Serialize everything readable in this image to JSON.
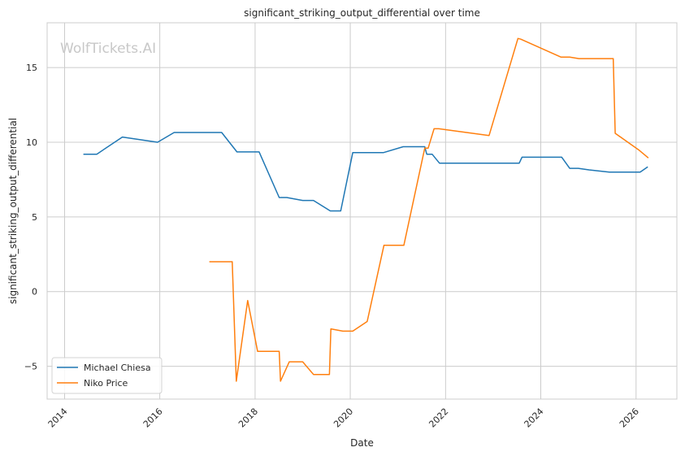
{
  "chart_data": {
    "type": "line",
    "title": "significant_striking_output_differential over time",
    "xlabel": "Date",
    "ylabel": "significant_striking_output_differential",
    "watermark": "WolfTickets.AI",
    "xlim": [
      "2013-08-20",
      "2026-11-10"
    ],
    "ylim": [
      -7.2,
      18.0
    ],
    "x_ticks": [
      "2014",
      "2016",
      "2018",
      "2020",
      "2022",
      "2024",
      "2026"
    ],
    "y_ticks": [
      -5,
      0,
      5,
      10,
      15
    ],
    "grid": true,
    "legend_position": "lower-left",
    "colors": {
      "Michael Chiesa": "#1f77b4",
      "Niko Price": "#ff7f0e"
    },
    "series": [
      {
        "name": "Michael Chiesa",
        "color": "#1f77b4",
        "points": [
          [
            "2014-05-25",
            9.2
          ],
          [
            "2014-09-05",
            9.2
          ],
          [
            "2015-03-20",
            10.35
          ],
          [
            "2015-12-15",
            10.0
          ],
          [
            "2016-04-20",
            10.65
          ],
          [
            "2017-01-20",
            10.65
          ],
          [
            "2017-04-20",
            10.65
          ],
          [
            "2017-08-15",
            9.35
          ],
          [
            "2018-02-01",
            9.35
          ],
          [
            "2018-07-05",
            6.3
          ],
          [
            "2018-09-01",
            6.3
          ],
          [
            "2019-01-01",
            6.1
          ],
          [
            "2019-03-25",
            6.1
          ],
          [
            "2019-08-01",
            5.4
          ],
          [
            "2019-10-20",
            5.4
          ],
          [
            "2020-01-20",
            9.3
          ],
          [
            "2020-09-10",
            9.3
          ],
          [
            "2021-02-10",
            9.7
          ],
          [
            "2021-07-25",
            9.7
          ],
          [
            "2021-08-10",
            9.2
          ],
          [
            "2021-09-20",
            9.2
          ],
          [
            "2021-11-15",
            8.6
          ],
          [
            "2023-07-20",
            8.6
          ],
          [
            "2023-08-10",
            9.0
          ],
          [
            "2024-06-10",
            9.0
          ],
          [
            "2024-08-10",
            8.25
          ],
          [
            "2024-10-15",
            8.25
          ],
          [
            "2025-01-05",
            8.15
          ],
          [
            "2025-06-10",
            8.0
          ],
          [
            "2026-02-01",
            8.0
          ],
          [
            "2026-04-01",
            8.35
          ]
        ]
      },
      {
        "name": "Niko Price",
        "color": "#ff7f0e",
        "points": [
          [
            "2017-01-15",
            2.0
          ],
          [
            "2017-07-10",
            2.0
          ],
          [
            "2017-08-10",
            -6.0
          ],
          [
            "2017-11-05",
            -0.6
          ],
          [
            "2018-01-20",
            -4.0
          ],
          [
            "2018-07-05",
            -4.0
          ],
          [
            "2018-07-15",
            -6.0
          ],
          [
            "2018-09-20",
            -4.7
          ],
          [
            "2019-01-01",
            -4.7
          ],
          [
            "2019-03-25",
            -5.55
          ],
          [
            "2019-07-25",
            -5.55
          ],
          [
            "2019-08-05",
            -2.5
          ],
          [
            "2019-11-05",
            -2.65
          ],
          [
            "2020-01-20",
            -2.65
          ],
          [
            "2020-05-10",
            -2.0
          ],
          [
            "2020-09-15",
            3.1
          ],
          [
            "2021-02-15",
            3.1
          ],
          [
            "2021-07-25",
            9.6
          ],
          [
            "2021-08-20",
            9.6
          ],
          [
            "2021-10-05",
            10.9
          ],
          [
            "2021-11-10",
            10.9
          ],
          [
            "2022-12-01",
            10.45
          ],
          [
            "2023-07-10",
            16.95
          ],
          [
            "2023-08-01",
            16.9
          ],
          [
            "2024-06-05",
            15.7
          ],
          [
            "2024-08-10",
            15.7
          ],
          [
            "2024-10-20",
            15.6
          ],
          [
            "2025-07-10",
            15.6
          ],
          [
            "2025-07-25",
            10.6
          ],
          [
            "2026-01-20",
            9.5
          ],
          [
            "2026-04-05",
            8.95
          ]
        ]
      }
    ]
  }
}
